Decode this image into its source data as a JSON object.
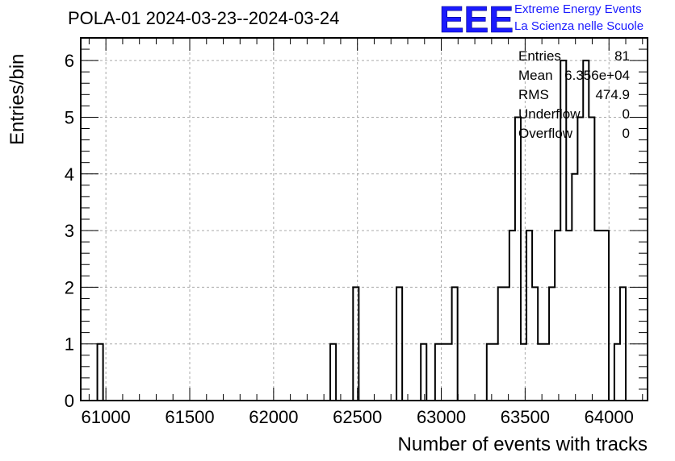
{
  "header": {
    "title": "POLA-01 2024-03-23--2024-03-24",
    "logo_text": "EEE",
    "logo_line1": "Extreme Energy Events",
    "logo_line2": "La Scienza nelle Scuole"
  },
  "stats": {
    "entries_label": "Entries",
    "entries_value": "81",
    "mean_label": "Mean",
    "mean_value": "6.356e+04",
    "rms_label": "RMS",
    "rms_value": "474.9",
    "underflow_label": "Underflow",
    "underflow_value": "0",
    "overflow_label": "Overflow",
    "overflow_value": "0"
  },
  "chart_data": {
    "type": "histogram",
    "title": "POLA-01 2024-03-23--2024-03-24",
    "xlabel": "Number of events with tracks",
    "ylabel": "Entries/bin",
    "xlim": [
      60850,
      64230
    ],
    "ylim": [
      0,
      6.4
    ],
    "x_ticks": [
      61000,
      61500,
      62000,
      62500,
      63000,
      63500,
      64000
    ],
    "y_ticks": [
      0,
      1,
      2,
      3,
      4,
      5,
      6
    ],
    "grid": true,
    "legend": "none",
    "line_color": "#000000",
    "bins": [
      {
        "x0": 60949,
        "x1": 60983,
        "value": 1
      },
      {
        "x0": 62338,
        "x1": 62372,
        "value": 1
      },
      {
        "x0": 62474,
        "x1": 62508,
        "value": 2
      },
      {
        "x0": 62733,
        "x1": 62767,
        "value": 2
      },
      {
        "x0": 62878,
        "x1": 62912,
        "value": 1
      },
      {
        "x0": 62963,
        "x1": 63063,
        "value": 1
      },
      {
        "x0": 63063,
        "x1": 63097,
        "value": 2
      },
      {
        "x0": 63271,
        "x1": 63338,
        "value": 1
      },
      {
        "x0": 63338,
        "x1": 63406,
        "value": 2
      },
      {
        "x0": 63406,
        "x1": 63440,
        "value": 3
      },
      {
        "x0": 63440,
        "x1": 63474,
        "value": 5
      },
      {
        "x0": 63474,
        "x1": 63508,
        "value": 1
      },
      {
        "x0": 63508,
        "x1": 63542,
        "value": 3
      },
      {
        "x0": 63542,
        "x1": 63576,
        "value": 2
      },
      {
        "x0": 63576,
        "x1": 63643,
        "value": 1
      },
      {
        "x0": 63643,
        "x1": 63677,
        "value": 2
      },
      {
        "x0": 63677,
        "x1": 63711,
        "value": 3
      },
      {
        "x0": 63711,
        "x1": 63745,
        "value": 6
      },
      {
        "x0": 63745,
        "x1": 63779,
        "value": 3
      },
      {
        "x0": 63779,
        "x1": 63813,
        "value": 4
      },
      {
        "x0": 63813,
        "x1": 63846,
        "value": 5
      },
      {
        "x0": 63846,
        "x1": 63880,
        "value": 6
      },
      {
        "x0": 63880,
        "x1": 63914,
        "value": 5
      },
      {
        "x0": 63914,
        "x1": 63999,
        "value": 3
      },
      {
        "x0": 64032,
        "x1": 64066,
        "value": 1
      },
      {
        "x0": 64066,
        "x1": 64100,
        "value": 2
      }
    ]
  }
}
